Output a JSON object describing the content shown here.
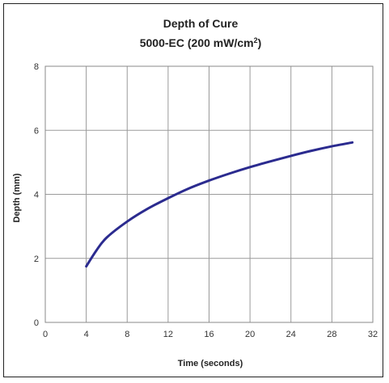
{
  "chart_data": {
    "type": "line",
    "title": "Depth of Cure",
    "subtitle_prefix": "5000-EC (200 mW/cm",
    "subtitle_sup": "2",
    "subtitle_suffix": ")",
    "xlabel": "Time (seconds)",
    "ylabel": "Depth (mm)",
    "xlim": [
      0,
      32
    ],
    "ylim": [
      0,
      8
    ],
    "x_ticks": [
      0,
      4,
      8,
      12,
      16,
      20,
      24,
      28,
      32
    ],
    "y_ticks": [
      0,
      2,
      4,
      6,
      8
    ],
    "x_tick_labels": [
      "0",
      "4",
      "8",
      "12",
      "16",
      "20",
      "24",
      "28",
      "32"
    ],
    "y_tick_labels": [
      "0",
      "2",
      "4",
      "6",
      "8"
    ],
    "grid": true,
    "legend": "none",
    "series": [
      {
        "color": "#2b2b8f",
        "x": [
          4,
          5,
          6,
          8,
          10,
          12,
          14,
          16,
          18,
          20,
          22,
          24,
          26,
          28,
          30
        ],
        "y": [
          1.75,
          2.25,
          2.65,
          3.15,
          3.55,
          3.88,
          4.18,
          4.43,
          4.65,
          4.85,
          5.03,
          5.2,
          5.36,
          5.5,
          5.62
        ]
      }
    ]
  }
}
